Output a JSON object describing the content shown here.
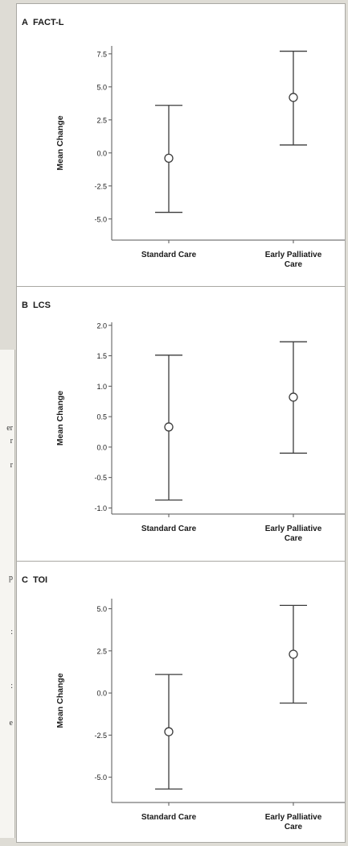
{
  "article_fragments": [
    "er",
    "r",
    "r",
    "p",
    ":",
    ":",
    "e"
  ],
  "colors": {
    "mark": "#3c3c3c",
    "axis": "#555555",
    "text": "#1a1a1a",
    "background": "#ffffff"
  },
  "chart_data": [
    {
      "type": "scatter",
      "panel_letter": "A",
      "title": "FACT-L",
      "xlabel": "",
      "ylabel": "Mean Change",
      "categories": [
        "Standard Care",
        "Early Palliative Care"
      ],
      "means": [
        -0.4,
        4.2
      ],
      "ci_lower": [
        -4.5,
        0.6
      ],
      "ci_upper": [
        3.6,
        7.7
      ],
      "ylim": [
        -6.6,
        8.1
      ],
      "yticks": [
        -5.0,
        -2.5,
        0.0,
        2.5,
        5.0,
        7.5
      ],
      "ytick_labels": [
        "-5.0",
        "-2.5",
        "0.0",
        "2.5",
        "5.0",
        "7.5"
      ],
      "grid": false
    },
    {
      "type": "scatter",
      "panel_letter": "B",
      "title": "LCS",
      "xlabel": "",
      "ylabel": "Mean Change",
      "categories": [
        "Standard Care",
        "Early Palliative Care"
      ],
      "means": [
        0.33,
        0.82
      ],
      "ci_lower": [
        -0.87,
        -0.1
      ],
      "ci_upper": [
        1.51,
        1.73
      ],
      "ylim": [
        -1.1,
        2.05
      ],
      "yticks": [
        -1.0,
        -0.5,
        0.0,
        0.5,
        1.0,
        1.5,
        2.0
      ],
      "ytick_labels": [
        "-1.0",
        "-0.5",
        "0.0",
        "0.5",
        "1.0",
        "1.5",
        "2.0"
      ],
      "grid": false
    },
    {
      "type": "scatter",
      "panel_letter": "C",
      "title": "TOI",
      "xlabel": "",
      "ylabel": "Mean Change",
      "categories": [
        "Standard Care",
        "Early Palliative Care"
      ],
      "means": [
        -2.3,
        2.3
      ],
      "ci_lower": [
        -5.7,
        -0.6
      ],
      "ci_upper": [
        1.1,
        5.2
      ],
      "ylim": [
        -6.5,
        5.6
      ],
      "yticks": [
        -5.0,
        -2.5,
        0.0,
        2.5,
        5.0
      ],
      "ytick_labels": [
        "-5.0",
        "-2.5",
        "0.0",
        "2.5",
        "5.0"
      ],
      "grid": false
    }
  ]
}
